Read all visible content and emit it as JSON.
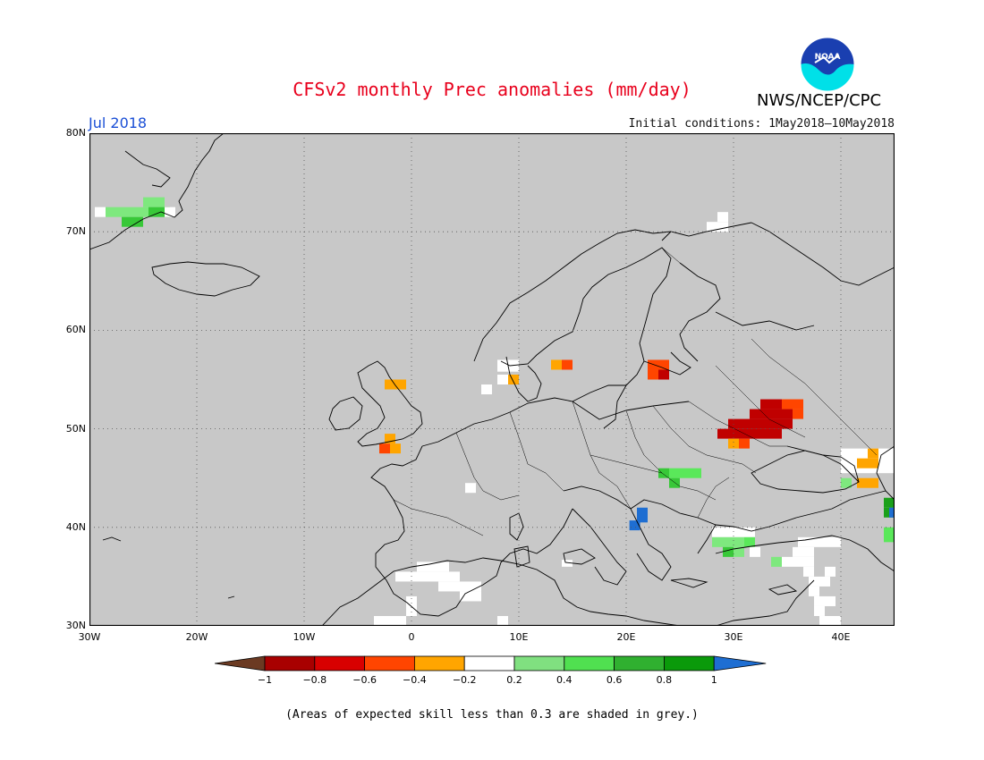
{
  "header": {
    "title": "CFSv2 monthly Prec anomalies (mm/day)",
    "agency": "NWS/NCEP/CPC",
    "logo_text": "NOAA",
    "period": "Jul 2018",
    "initial_conditions": "Initial conditions: 1May2018—10May2018"
  },
  "map": {
    "region": "Europe",
    "lon_range": [
      -30,
      45
    ],
    "lat_range": [
      30,
      80
    ],
    "background_color": "#c8c8c8",
    "coastline_color": "#000000",
    "gridlines": "dotted",
    "lat_ticks": [
      {
        "value": 30,
        "label": "30N"
      },
      {
        "value": 40,
        "label": "40N"
      },
      {
        "value": 50,
        "label": "50N"
      },
      {
        "value": 60,
        "label": "60N"
      },
      {
        "value": 70,
        "label": "70N"
      },
      {
        "value": 80,
        "label": "80N"
      }
    ],
    "lon_ticks": [
      {
        "value": -30,
        "label": "30W"
      },
      {
        "value": -20,
        "label": "20W"
      },
      {
        "value": -10,
        "label": "10W"
      },
      {
        "value": 0,
        "label": "0"
      },
      {
        "value": 10,
        "label": "10E"
      },
      {
        "value": 20,
        "label": "20E"
      },
      {
        "value": 30,
        "label": "30E"
      },
      {
        "value": 40,
        "label": "40E"
      }
    ],
    "anomaly_cells": [
      {
        "lon": -29.5,
        "lat": 71.5,
        "w": 1,
        "h": 1,
        "color": "#ffffff"
      },
      {
        "lon": -28.5,
        "lat": 71.5,
        "w": 4,
        "h": 1,
        "color": "#7ee87e"
      },
      {
        "lon": -27,
        "lat": 70.5,
        "w": 2,
        "h": 1,
        "color": "#38c838"
      },
      {
        "lon": -25,
        "lat": 72.5,
        "w": 2,
        "h": 1,
        "color": "#7ee87e"
      },
      {
        "lon": -24.5,
        "lat": 71.5,
        "w": 2,
        "h": 1,
        "color": "#38c838"
      },
      {
        "lon": -23,
        "lat": 71.5,
        "w": 1,
        "h": 1,
        "color": "#ffffff"
      },
      {
        "lon": 27.5,
        "lat": 70,
        "w": 2,
        "h": 1,
        "color": "#ffffff"
      },
      {
        "lon": 28.5,
        "lat": 71,
        "w": 1,
        "h": 1,
        "color": "#ffffff"
      },
      {
        "lon": 8,
        "lat": 55.8,
        "w": 2,
        "h": 1.2,
        "color": "#ffffff"
      },
      {
        "lon": 8,
        "lat": 54.5,
        "w": 1,
        "h": 1,
        "color": "#ffffff"
      },
      {
        "lon": 9,
        "lat": 54.5,
        "w": 1,
        "h": 1,
        "color": "#ffa500"
      },
      {
        "lon": 6.5,
        "lat": 53.5,
        "w": 1,
        "h": 1,
        "color": "#ffffff"
      },
      {
        "lon": 13,
        "lat": 56,
        "w": 1,
        "h": 1,
        "color": "#ffa500"
      },
      {
        "lon": 14,
        "lat": 56,
        "w": 1,
        "h": 1,
        "color": "#ff4500"
      },
      {
        "lon": 22,
        "lat": 56,
        "w": 2,
        "h": 1,
        "color": "#ff4500"
      },
      {
        "lon": 22,
        "lat": 55,
        "w": 1,
        "h": 1,
        "color": "#ff4500"
      },
      {
        "lon": 23,
        "lat": 55,
        "w": 1,
        "h": 1,
        "color": "#c00000"
      },
      {
        "lon": -2.5,
        "lat": 54,
        "w": 2,
        "h": 1,
        "color": "#ffa500"
      },
      {
        "lon": -2.5,
        "lat": 48.5,
        "w": 1,
        "h": 1,
        "color": "#ffa500"
      },
      {
        "lon": -3,
        "lat": 47.5,
        "w": 1,
        "h": 1,
        "color": "#ff4500"
      },
      {
        "lon": -2,
        "lat": 47.5,
        "w": 1,
        "h": 1,
        "color": "#ffa500"
      },
      {
        "lon": 32.5,
        "lat": 52,
        "w": 2,
        "h": 1,
        "color": "#c00000"
      },
      {
        "lon": 34.5,
        "lat": 52,
        "w": 2,
        "h": 1,
        "color": "#ff4500"
      },
      {
        "lon": 31.5,
        "lat": 51,
        "w": 4,
        "h": 1,
        "color": "#c00000"
      },
      {
        "lon": 35.5,
        "lat": 51,
        "w": 1,
        "h": 1,
        "color": "#ff4500"
      },
      {
        "lon": 29.5,
        "lat": 50,
        "w": 6,
        "h": 1,
        "color": "#c00000"
      },
      {
        "lon": 28.5,
        "lat": 49,
        "w": 6,
        "h": 1,
        "color": "#c00000"
      },
      {
        "lon": 29.5,
        "lat": 48,
        "w": 1,
        "h": 1,
        "color": "#ffa500"
      },
      {
        "lon": 30.5,
        "lat": 48,
        "w": 1,
        "h": 1,
        "color": "#ff4500"
      },
      {
        "lon": 23,
        "lat": 45,
        "w": 1,
        "h": 1,
        "color": "#38c838"
      },
      {
        "lon": 24,
        "lat": 45,
        "w": 3,
        "h": 1,
        "color": "#5ae85a"
      },
      {
        "lon": 24,
        "lat": 44,
        "w": 1,
        "h": 1,
        "color": "#38c838"
      },
      {
        "lon": 21,
        "lat": 40.5,
        "w": 1,
        "h": 1.5,
        "color": "#1e6ed2"
      },
      {
        "lon": 20.3,
        "lat": 39.7,
        "w": 1,
        "h": 1,
        "color": "#1e6ed2"
      },
      {
        "lon": 40,
        "lat": 45.5,
        "w": 5,
        "h": 2.5,
        "color": "#ffffff"
      },
      {
        "lon": 41.5,
        "lat": 46,
        "w": 2,
        "h": 1,
        "color": "#ffa500"
      },
      {
        "lon": 42.5,
        "lat": 47,
        "w": 1,
        "h": 1,
        "color": "#ffa500"
      },
      {
        "lon": 41.5,
        "lat": 44,
        "w": 2,
        "h": 1,
        "color": "#ffa500"
      },
      {
        "lon": 40,
        "lat": 44,
        "w": 1,
        "h": 1,
        "color": "#7ee87e"
      },
      {
        "lon": 44,
        "lat": 42,
        "w": 1,
        "h": 1,
        "color": "#1aa01a"
      },
      {
        "lon": 44,
        "lat": 41,
        "w": 1,
        "h": 1,
        "color": "#1aa01a"
      },
      {
        "lon": 44.5,
        "lat": 41,
        "w": 0.5,
        "h": 1,
        "color": "#1e6ed2"
      },
      {
        "lon": 44,
        "lat": 38.5,
        "w": 1,
        "h": 1.5,
        "color": "#5ae85a"
      },
      {
        "lon": 5,
        "lat": 43.5,
        "w": 1,
        "h": 1,
        "color": "#ffffff"
      },
      {
        "lon": 28,
        "lat": 39,
        "w": 4,
        "h": 1,
        "color": "#ffffff"
      },
      {
        "lon": 28,
        "lat": 38,
        "w": 3,
        "h": 1,
        "color": "#7ee87e"
      },
      {
        "lon": 31,
        "lat": 38,
        "w": 1,
        "h": 1,
        "color": "#5ae85a"
      },
      {
        "lon": 29,
        "lat": 37,
        "w": 1,
        "h": 1,
        "color": "#38c838"
      },
      {
        "lon": 30,
        "lat": 37,
        "w": 1,
        "h": 1,
        "color": "#7ee87e"
      },
      {
        "lon": 31.5,
        "lat": 37,
        "w": 1,
        "h": 1,
        "color": "#ffffff"
      },
      {
        "lon": 36,
        "lat": 38,
        "w": 4,
        "h": 1,
        "color": "#ffffff"
      },
      {
        "lon": 35.5,
        "lat": 37,
        "w": 2,
        "h": 1,
        "color": "#ffffff"
      },
      {
        "lon": 33.5,
        "lat": 36,
        "w": 1,
        "h": 1,
        "color": "#7ee87e"
      },
      {
        "lon": 34.5,
        "lat": 36,
        "w": 3,
        "h": 1,
        "color": "#ffffff"
      },
      {
        "lon": 36.5,
        "lat": 35,
        "w": 1,
        "h": 1,
        "color": "#ffffff"
      },
      {
        "lon": 37,
        "lat": 34,
        "w": 2,
        "h": 1,
        "color": "#ffffff"
      },
      {
        "lon": 38.5,
        "lat": 35,
        "w": 1,
        "h": 1,
        "color": "#ffffff"
      },
      {
        "lon": 37,
        "lat": 33,
        "w": 1,
        "h": 1,
        "color": "#ffffff"
      },
      {
        "lon": 37.5,
        "lat": 32,
        "w": 2,
        "h": 1,
        "color": "#ffffff"
      },
      {
        "lon": 37.5,
        "lat": 31,
        "w": 1,
        "h": 1,
        "color": "#ffffff"
      },
      {
        "lon": 38,
        "lat": 30,
        "w": 1,
        "h": 1,
        "color": "#ffffff"
      },
      {
        "lon": 39,
        "lat": 30,
        "w": 1,
        "h": 1,
        "color": "#ffffff"
      },
      {
        "lon": 0.5,
        "lat": 35.5,
        "w": 3,
        "h": 1,
        "color": "#ffffff"
      },
      {
        "lon": -1.5,
        "lat": 34.5,
        "w": 3,
        "h": 1,
        "color": "#ffffff"
      },
      {
        "lon": 1.5,
        "lat": 34.5,
        "w": 3,
        "h": 1,
        "color": "#ffffff"
      },
      {
        "lon": 2.5,
        "lat": 33.5,
        "w": 4,
        "h": 1,
        "color": "#ffffff"
      },
      {
        "lon": 4.5,
        "lat": 32.5,
        "w": 2,
        "h": 1,
        "color": "#ffffff"
      },
      {
        "lon": -0.5,
        "lat": 32,
        "w": 1,
        "h": 1,
        "color": "#ffffff"
      },
      {
        "lon": -0.5,
        "lat": 31,
        "w": 1,
        "h": 1,
        "color": "#ffffff"
      },
      {
        "lon": -3.5,
        "lat": 30,
        "w": 3,
        "h": 1,
        "color": "#ffffff"
      },
      {
        "lon": 8,
        "lat": 30,
        "w": 1,
        "h": 1,
        "color": "#ffffff"
      },
      {
        "lon": 14,
        "lat": 36,
        "w": 1,
        "h": 0.7,
        "color": "#ffffff"
      }
    ]
  },
  "colorbar": {
    "colors": [
      "#6b3a22",
      "#a80000",
      "#d80000",
      "#ff4500",
      "#ffa500",
      "#ffffff",
      "#80e080",
      "#50e050",
      "#30b030",
      "#0a9a0a",
      "#1e6ed2"
    ],
    "tick_labels": [
      "−1",
      "−0.8",
      "−0.6",
      "−0.4",
      "−0.2",
      "0.2",
      "0.4",
      "0.6",
      "0.8",
      "1"
    ]
  },
  "footnote": "(Areas of expected skill less than 0.3 are shaded in grey.)"
}
